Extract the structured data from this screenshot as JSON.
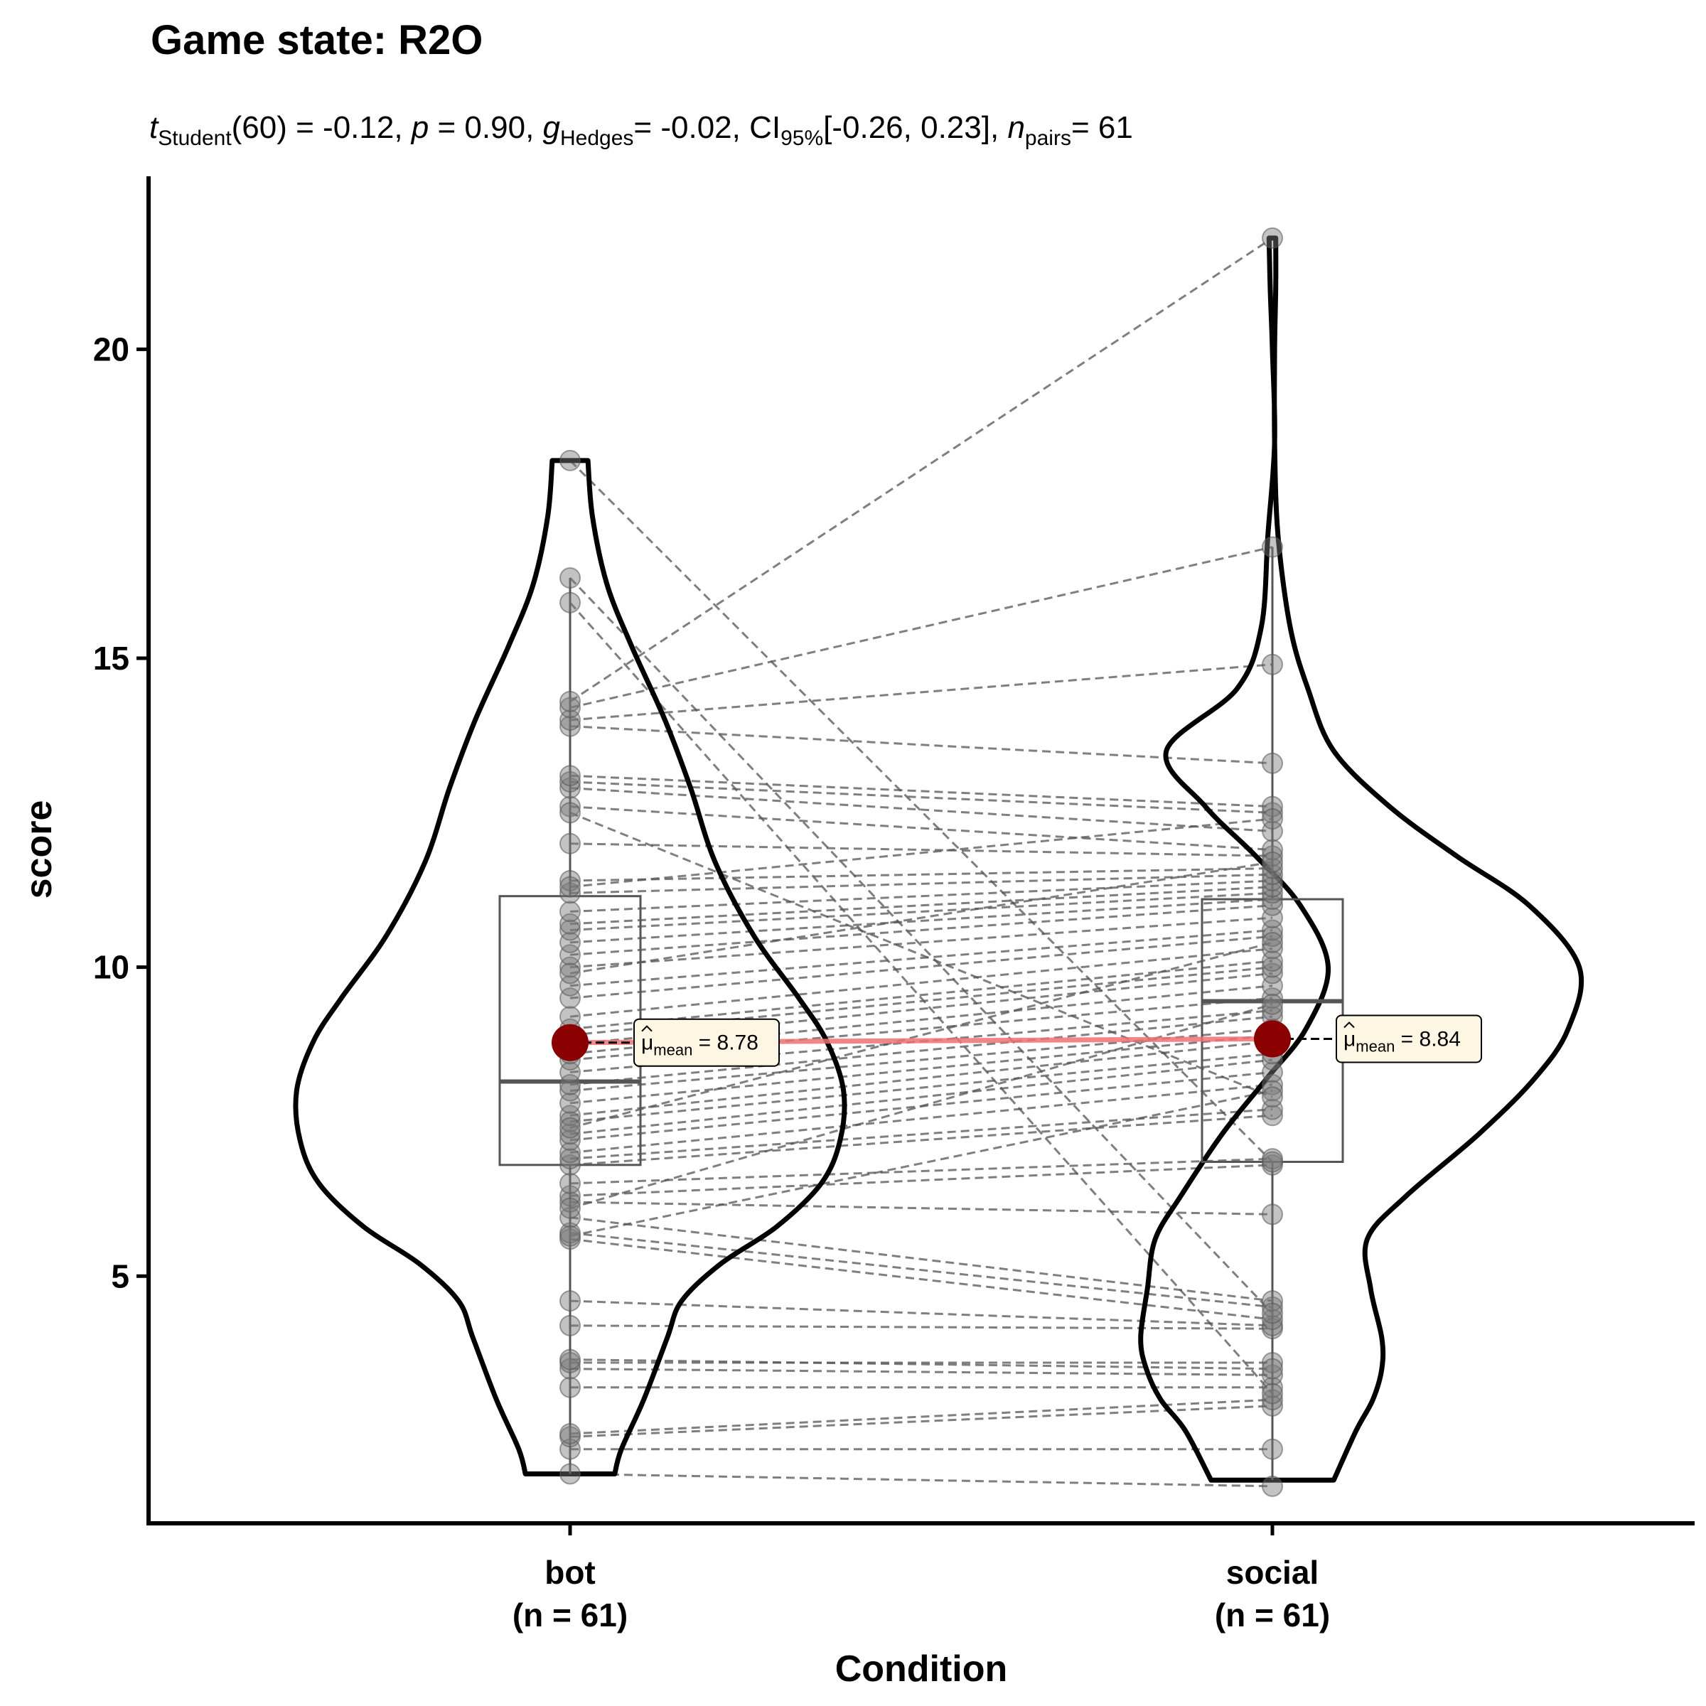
{
  "chart_data": {
    "type": "violin",
    "title": "Game state: R2O",
    "subtitle": {
      "t_symbol": "t",
      "t_sub": "Student",
      "t_text": "(60) = -0.12,",
      "p_symbol": "p",
      "p_text": "= 0.90,",
      "g_symbol": "g",
      "g_hat": "^",
      "g_sub": "Hedges",
      "g_text": "= -0.02,",
      "ci_symbol": "CI",
      "ci_sub": "95%",
      "ci_text": "[-0.26, 0.23],",
      "n_symbol": "n",
      "n_sub": "pairs",
      "n_text": "= 61"
    },
    "xlabel": "Condition",
    "ylabel": "score",
    "ylim": [
      1.0,
      22.8
    ],
    "yticks": [
      5,
      10,
      15,
      20
    ],
    "categories": [
      "bot",
      "social"
    ],
    "category_counts": [
      "(n = 61)",
      "(n = 61)"
    ],
    "mean_symbol": "μ",
    "mean_sub": "mean",
    "colors": {
      "mean_point": "#8b0000",
      "mean_line": "#f07070",
      "points": "#7a7a7a",
      "label_bg": "#fdf6e3"
    },
    "groups": [
      {
        "name": "bot",
        "mean": 8.78,
        "mean_text": "= 8.78",
        "box": {
          "q1": 6.8,
          "median": 8.15,
          "q3": 11.15,
          "lower": 1.8,
          "upper": 16.3
        },
        "violin": [
          [
            1.8,
            0.4
          ],
          [
            2.2,
            0.46
          ],
          [
            3.0,
            0.66
          ],
          [
            4.0,
            0.87
          ],
          [
            4.6,
            1.0
          ],
          [
            5.2,
            1.35
          ],
          [
            5.8,
            1.85
          ],
          [
            6.5,
            2.25
          ],
          [
            7.2,
            2.42
          ],
          [
            8.0,
            2.45
          ],
          [
            8.8,
            2.3
          ],
          [
            9.5,
            2.05
          ],
          [
            10.5,
            1.65
          ],
          [
            11.7,
            1.3
          ],
          [
            12.9,
            1.08
          ],
          [
            14.0,
            0.85
          ],
          [
            15.2,
            0.55
          ],
          [
            16.2,
            0.33
          ],
          [
            17.3,
            0.2
          ],
          [
            18.2,
            0.16
          ]
        ],
        "points": [
          1.8,
          2.2,
          2.4,
          2.45,
          3.2,
          3.5,
          3.6,
          3.65,
          4.2,
          4.6,
          5.6,
          5.7,
          5.95,
          6.2,
          6.3,
          6.5,
          6.8,
          6.9,
          7.0,
          7.2,
          7.3,
          7.5,
          7.6,
          7.8,
          8.0,
          8.1,
          8.3,
          8.5,
          8.6,
          8.75,
          8.9,
          9.0,
          9.2,
          9.5,
          9.7,
          10.0,
          10.2,
          10.4,
          10.6,
          10.7,
          10.9,
          11.2,
          11.4,
          12.0,
          12.6,
          12.9,
          13.0,
          13.1,
          13.9,
          14.0,
          14.2,
          14.3,
          15.9,
          16.3,
          18.2,
          5.65,
          6.1,
          7.4,
          9.9,
          11.3,
          12.5
        ]
      },
      {
        "name": "social",
        "mean": 8.84,
        "mean_text": "= 8.84",
        "box": {
          "q1": 6.85,
          "median": 9.45,
          "q3": 11.1,
          "lower": 1.7,
          "upper": 16.8
        },
        "violin": [
          [
            1.7,
            0.55
          ],
          [
            2.5,
            0.78
          ],
          [
            3.0,
            1.0
          ],
          [
            3.5,
            1.13
          ],
          [
            4.0,
            1.18
          ],
          [
            4.8,
            1.12
          ],
          [
            5.6,
            1.05
          ],
          [
            6.3,
            0.82
          ],
          [
            7.3,
            0.45
          ],
          [
            8.2,
            0.05
          ],
          [
            9.0,
            -0.3
          ],
          [
            10.0,
            -0.5
          ],
          [
            11.0,
            -0.25
          ],
          [
            11.8,
            0.15
          ],
          [
            12.6,
            0.6
          ],
          [
            13.5,
            0.95
          ],
          [
            14.5,
            0.32
          ],
          [
            15.5,
            0.1
          ],
          [
            17.0,
            0.04
          ],
          [
            18.5,
            -0.02
          ],
          [
            20.0,
            0.0
          ],
          [
            21.0,
            0.02
          ],
          [
            21.8,
            0.03
          ]
        ],
        "violin_right": [
          [
            1.7,
            0.55
          ],
          [
            2.5,
            0.75
          ],
          [
            3.0,
            0.9
          ],
          [
            3.5,
            0.98
          ],
          [
            4.0,
            0.98
          ],
          [
            4.8,
            0.88
          ],
          [
            5.6,
            0.85
          ],
          [
            6.3,
            1.2
          ],
          [
            7.3,
            1.85
          ],
          [
            8.2,
            2.35
          ],
          [
            9.0,
            2.65
          ],
          [
            10.0,
            2.75
          ],
          [
            11.0,
            2.3
          ],
          [
            11.8,
            1.65
          ],
          [
            12.6,
            1.05
          ],
          [
            13.5,
            0.55
          ],
          [
            14.5,
            0.32
          ],
          [
            15.5,
            0.16
          ],
          [
            17.0,
            0.05
          ],
          [
            18.5,
            0.02
          ],
          [
            20.0,
            0.02
          ],
          [
            21.0,
            0.03
          ],
          [
            21.8,
            0.03
          ]
        ],
        "points": [
          1.6,
          2.2,
          2.9,
          3.0,
          3.2,
          3.4,
          3.6,
          3.5,
          4.15,
          4.2,
          4.3,
          4.5,
          4.6,
          6.0,
          6.8,
          6.9,
          7.6,
          7.7,
          8.1,
          8.3,
          8.5,
          8.6,
          8.8,
          8.9,
          9.0,
          9.2,
          9.3,
          9.5,
          9.7,
          9.9,
          10.0,
          10.1,
          10.3,
          10.5,
          10.6,
          10.8,
          11.0,
          11.1,
          11.2,
          11.3,
          11.4,
          11.5,
          11.6,
          11.8,
          11.9,
          12.2,
          12.5,
          12.6,
          13.3,
          14.9,
          16.8,
          21.8,
          3.1,
          4.4,
          6.85,
          8.0,
          9.4,
          10.4,
          11.7,
          12.4,
          7.9
        ]
      }
    ]
  }
}
